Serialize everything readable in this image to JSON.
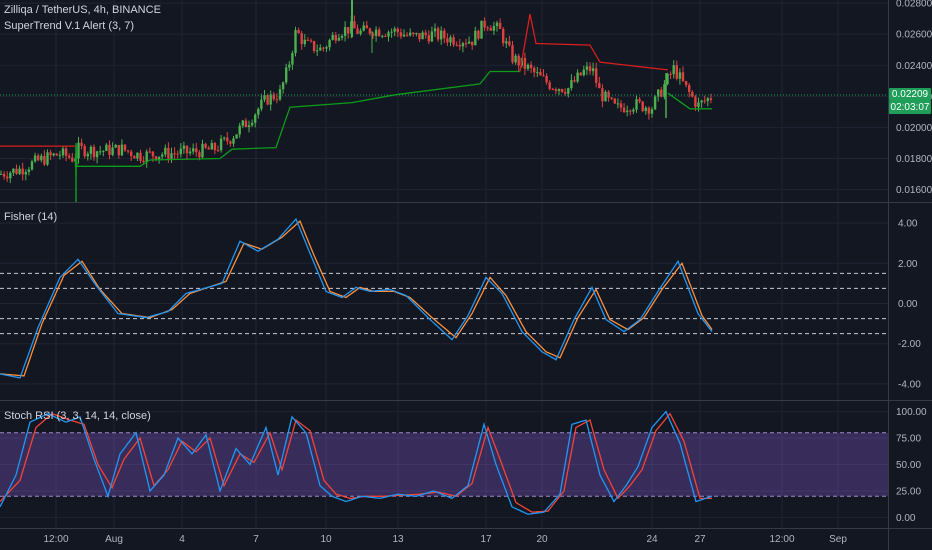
{
  "main_pane": {
    "title": "Zilliqa / TetherUS, 4h, BINANCE",
    "indicator": "SuperTrend V.1 Alert (3, 7)",
    "price_ticks": [
      "0.02800",
      "0.02600",
      "0.02400",
      "0.02200",
      "0.02000",
      "0.01800",
      "0.01600"
    ],
    "last_price": "0.02209",
    "countdown": "02:03:07",
    "colors": {
      "up": "#26a69a",
      "down": "#ef5350",
      "candle_up": "#4caf50",
      "candle_down": "#e0413f",
      "supertrend_up": "#0c9c19",
      "supertrend_down": "#d81e1e",
      "last_price": "#1e9e58"
    }
  },
  "fisher_pane": {
    "title": "Fisher (14)",
    "ticks": [
      "4.00",
      "2.00",
      "0.00",
      "-2.00",
      "-4.00"
    ],
    "colors": {
      "fisher": "#2196f3",
      "trigger": "#ff8f3a"
    }
  },
  "stoch_pane": {
    "title": "Stoch RSI (3, 3, 14, 14, close)",
    "ticks": [
      "100.00",
      "75.00",
      "50.00",
      "25.00",
      "0.00"
    ],
    "colors": {
      "k": "#2196f3",
      "d": "#f44336",
      "band": "#7e57c2"
    }
  },
  "time_axis": [
    "12:00",
    "Aug",
    "4",
    "7",
    "10",
    "13",
    "17",
    "20",
    "24",
    "27",
    "12:00",
    "Sep"
  ],
  "chart_data": [
    {
      "type": "candlestick",
      "title": "Zilliqa / TetherUS, 4h, BINANCE",
      "ylim": [
        0.0152,
        0.0282
      ],
      "y_ticks": [
        0.016,
        0.018,
        0.02,
        0.022,
        0.024,
        0.026,
        0.028
      ],
      "close_anchors": [
        [
          0,
          0.017
        ],
        [
          20,
          0.0173
        ],
        [
          40,
          0.0179
        ],
        [
          60,
          0.0183
        ],
        [
          74,
          0.018
        ],
        [
          78,
          0.0186
        ],
        [
          100,
          0.0185
        ],
        [
          122,
          0.0186
        ],
        [
          140,
          0.0182
        ],
        [
          160,
          0.0183
        ],
        [
          190,
          0.0184
        ],
        [
          214,
          0.0186
        ],
        [
          230,
          0.0193
        ],
        [
          248,
          0.0204
        ],
        [
          266,
          0.0218
        ],
        [
          280,
          0.0222
        ],
        [
          288,
          0.0238
        ],
        [
          296,
          0.0262
        ],
        [
          306,
          0.0253
        ],
        [
          322,
          0.025
        ],
        [
          338,
          0.0262
        ],
        [
          352,
          0.0264
        ],
        [
          360,
          0.0261
        ],
        [
          372,
          0.0263
        ],
        [
          384,
          0.0262
        ],
        [
          396,
          0.0262
        ],
        [
          412,
          0.0258
        ],
        [
          432,
          0.026
        ],
        [
          452,
          0.0257
        ],
        [
          472,
          0.0256
        ],
        [
          486,
          0.0268
        ],
        [
          500,
          0.0262
        ],
        [
          512,
          0.0245
        ],
        [
          528,
          0.0238
        ],
        [
          540,
          0.0232
        ],
        [
          552,
          0.0227
        ],
        [
          568,
          0.0225
        ],
        [
          584,
          0.0236
        ],
        [
          592,
          0.0238
        ],
        [
          600,
          0.0222
        ],
        [
          616,
          0.0212
        ],
        [
          632,
          0.0215
        ],
        [
          652,
          0.0213
        ],
        [
          666,
          0.0229
        ],
        [
          674,
          0.0238
        ],
        [
          686,
          0.0225
        ],
        [
          698,
          0.0214
        ],
        [
          712,
          0.022
        ]
      ],
      "last_price": 0.02209
    },
    {
      "type": "line",
      "title": "Fisher (14)",
      "ylim": [
        -4.8,
        5.0
      ],
      "y_ticks": [
        -4,
        -2,
        0,
        2,
        4
      ],
      "levels": [
        1.5,
        0.75,
        -0.75,
        -1.5
      ],
      "series": [
        {
          "name": "Fisher",
          "anchors": [
            [
              0,
              -3.5
            ],
            [
              20,
              -3.7
            ],
            [
              38,
              -1.2
            ],
            [
              60,
              1.3
            ],
            [
              78,
              2.2
            ],
            [
              96,
              0.9
            ],
            [
              118,
              -0.5
            ],
            [
              146,
              -0.7
            ],
            [
              168,
              -0.4
            ],
            [
              186,
              0.5
            ],
            [
              222,
              1.0
            ],
            [
              240,
              3.1
            ],
            [
              258,
              2.6
            ],
            [
              278,
              3.2
            ],
            [
              296,
              4.2
            ],
            [
              310,
              2.5
            ],
            [
              326,
              0.6
            ],
            [
              342,
              0.3
            ],
            [
              356,
              0.8
            ],
            [
              370,
              0.6
            ],
            [
              390,
              0.7
            ],
            [
              406,
              0.4
            ],
            [
              428,
              -0.7
            ],
            [
              452,
              -1.8
            ],
            [
              468,
              -0.6
            ],
            [
              486,
              1.3
            ],
            [
              502,
              0.5
            ],
            [
              522,
              -1.4
            ],
            [
              542,
              -2.4
            ],
            [
              556,
              -2.8
            ],
            [
              574,
              -0.8
            ],
            [
              592,
              0.8
            ],
            [
              606,
              -0.8
            ],
            [
              624,
              -1.4
            ],
            [
              640,
              -0.8
            ],
            [
              658,
              0.6
            ],
            [
              678,
              2.1
            ],
            [
              698,
              -0.5
            ],
            [
              712,
              -1.4
            ]
          ]
        },
        {
          "name": "Trigger",
          "anchors": [
            [
              0,
              -3.5
            ],
            [
              24,
              -3.6
            ],
            [
              42,
              -1.0
            ],
            [
              64,
              1.4
            ],
            [
              82,
              2.1
            ],
            [
              100,
              0.7
            ],
            [
              122,
              -0.5
            ],
            [
              150,
              -0.7
            ],
            [
              172,
              -0.3
            ],
            [
              190,
              0.5
            ],
            [
              226,
              1.1
            ],
            [
              244,
              3.0
            ],
            [
              262,
              2.7
            ],
            [
              282,
              3.3
            ],
            [
              300,
              4.1
            ],
            [
              314,
              2.4
            ],
            [
              330,
              0.6
            ],
            [
              346,
              0.3
            ],
            [
              360,
              0.8
            ],
            [
              374,
              0.6
            ],
            [
              394,
              0.6
            ],
            [
              410,
              0.3
            ],
            [
              432,
              -0.7
            ],
            [
              456,
              -1.7
            ],
            [
              472,
              -0.5
            ],
            [
              490,
              1.3
            ],
            [
              506,
              0.4
            ],
            [
              526,
              -1.4
            ],
            [
              546,
              -2.4
            ],
            [
              560,
              -2.7
            ],
            [
              578,
              -0.7
            ],
            [
              596,
              0.7
            ],
            [
              610,
              -0.8
            ],
            [
              628,
              -1.3
            ],
            [
              644,
              -0.7
            ],
            [
              662,
              0.7
            ],
            [
              682,
              2.0
            ],
            [
              702,
              -0.6
            ],
            [
              712,
              -1.3
            ]
          ]
        }
      ]
    },
    {
      "type": "line",
      "title": "Stoch RSI (3, 3, 14, 14, close)",
      "ylim": [
        -10,
        110
      ],
      "y_ticks": [
        0,
        25,
        50,
        75,
        100
      ],
      "band": [
        20,
        80
      ],
      "series": [
        {
          "name": "K",
          "anchors": [
            [
              0,
              10
            ],
            [
              16,
              40
            ],
            [
              30,
              90
            ],
            [
              48,
              98
            ],
            [
              66,
              90
            ],
            [
              80,
              95
            ],
            [
              94,
              55
            ],
            [
              108,
              20
            ],
            [
              120,
              60
            ],
            [
              136,
              80
            ],
            [
              150,
              25
            ],
            [
              164,
              40
            ],
            [
              178,
              75
            ],
            [
              192,
              60
            ],
            [
              206,
              78
            ],
            [
              220,
              25
            ],
            [
              236,
              65
            ],
            [
              250,
              50
            ],
            [
              266,
              85
            ],
            [
              278,
              40
            ],
            [
              292,
              95
            ],
            [
              306,
              80
            ],
            [
              320,
              30
            ],
            [
              332,
              20
            ],
            [
              346,
              15
            ],
            [
              362,
              20
            ],
            [
              380,
              18
            ],
            [
              398,
              22
            ],
            [
              416,
              20
            ],
            [
              434,
              25
            ],
            [
              452,
              18
            ],
            [
              468,
              30
            ],
            [
              484,
              88
            ],
            [
              496,
              50
            ],
            [
              512,
              10
            ],
            [
              528,
              3
            ],
            [
              544,
              5
            ],
            [
              560,
              22
            ],
            [
              572,
              88
            ],
            [
              586,
              92
            ],
            [
              600,
              40
            ],
            [
              614,
              15
            ],
            [
              626,
              30
            ],
            [
              638,
              48
            ],
            [
              652,
              85
            ],
            [
              666,
              100
            ],
            [
              680,
              70
            ],
            [
              696,
              15
            ],
            [
              712,
              20
            ]
          ]
        },
        {
          "name": "D",
          "anchors": [
            [
              0,
              15
            ],
            [
              20,
              35
            ],
            [
              36,
              85
            ],
            [
              52,
              98
            ],
            [
              70,
              92
            ],
            [
              84,
              88
            ],
            [
              98,
              50
            ],
            [
              112,
              28
            ],
            [
              124,
              55
            ],
            [
              140,
              75
            ],
            [
              154,
              30
            ],
            [
              168,
              45
            ],
            [
              182,
              72
            ],
            [
              196,
              62
            ],
            [
              210,
              75
            ],
            [
              224,
              30
            ],
            [
              240,
              60
            ],
            [
              254,
              52
            ],
            [
              270,
              80
            ],
            [
              282,
              45
            ],
            [
              296,
              92
            ],
            [
              310,
              82
            ],
            [
              324,
              35
            ],
            [
              336,
              22
            ],
            [
              350,
              18
            ],
            [
              366,
              20
            ],
            [
              384,
              20
            ],
            [
              402,
              21
            ],
            [
              420,
              22
            ],
            [
              438,
              24
            ],
            [
              456,
              20
            ],
            [
              472,
              32
            ],
            [
              488,
              85
            ],
            [
              500,
              55
            ],
            [
              516,
              14
            ],
            [
              532,
              5
            ],
            [
              548,
              6
            ],
            [
              564,
              25
            ],
            [
              576,
              85
            ],
            [
              590,
              92
            ],
            [
              604,
              45
            ],
            [
              618,
              18
            ],
            [
              630,
              30
            ],
            [
              642,
              45
            ],
            [
              656,
              82
            ],
            [
              670,
              98
            ],
            [
              684,
              72
            ],
            [
              700,
              18
            ],
            [
              712,
              18
            ]
          ]
        }
      ]
    }
  ]
}
